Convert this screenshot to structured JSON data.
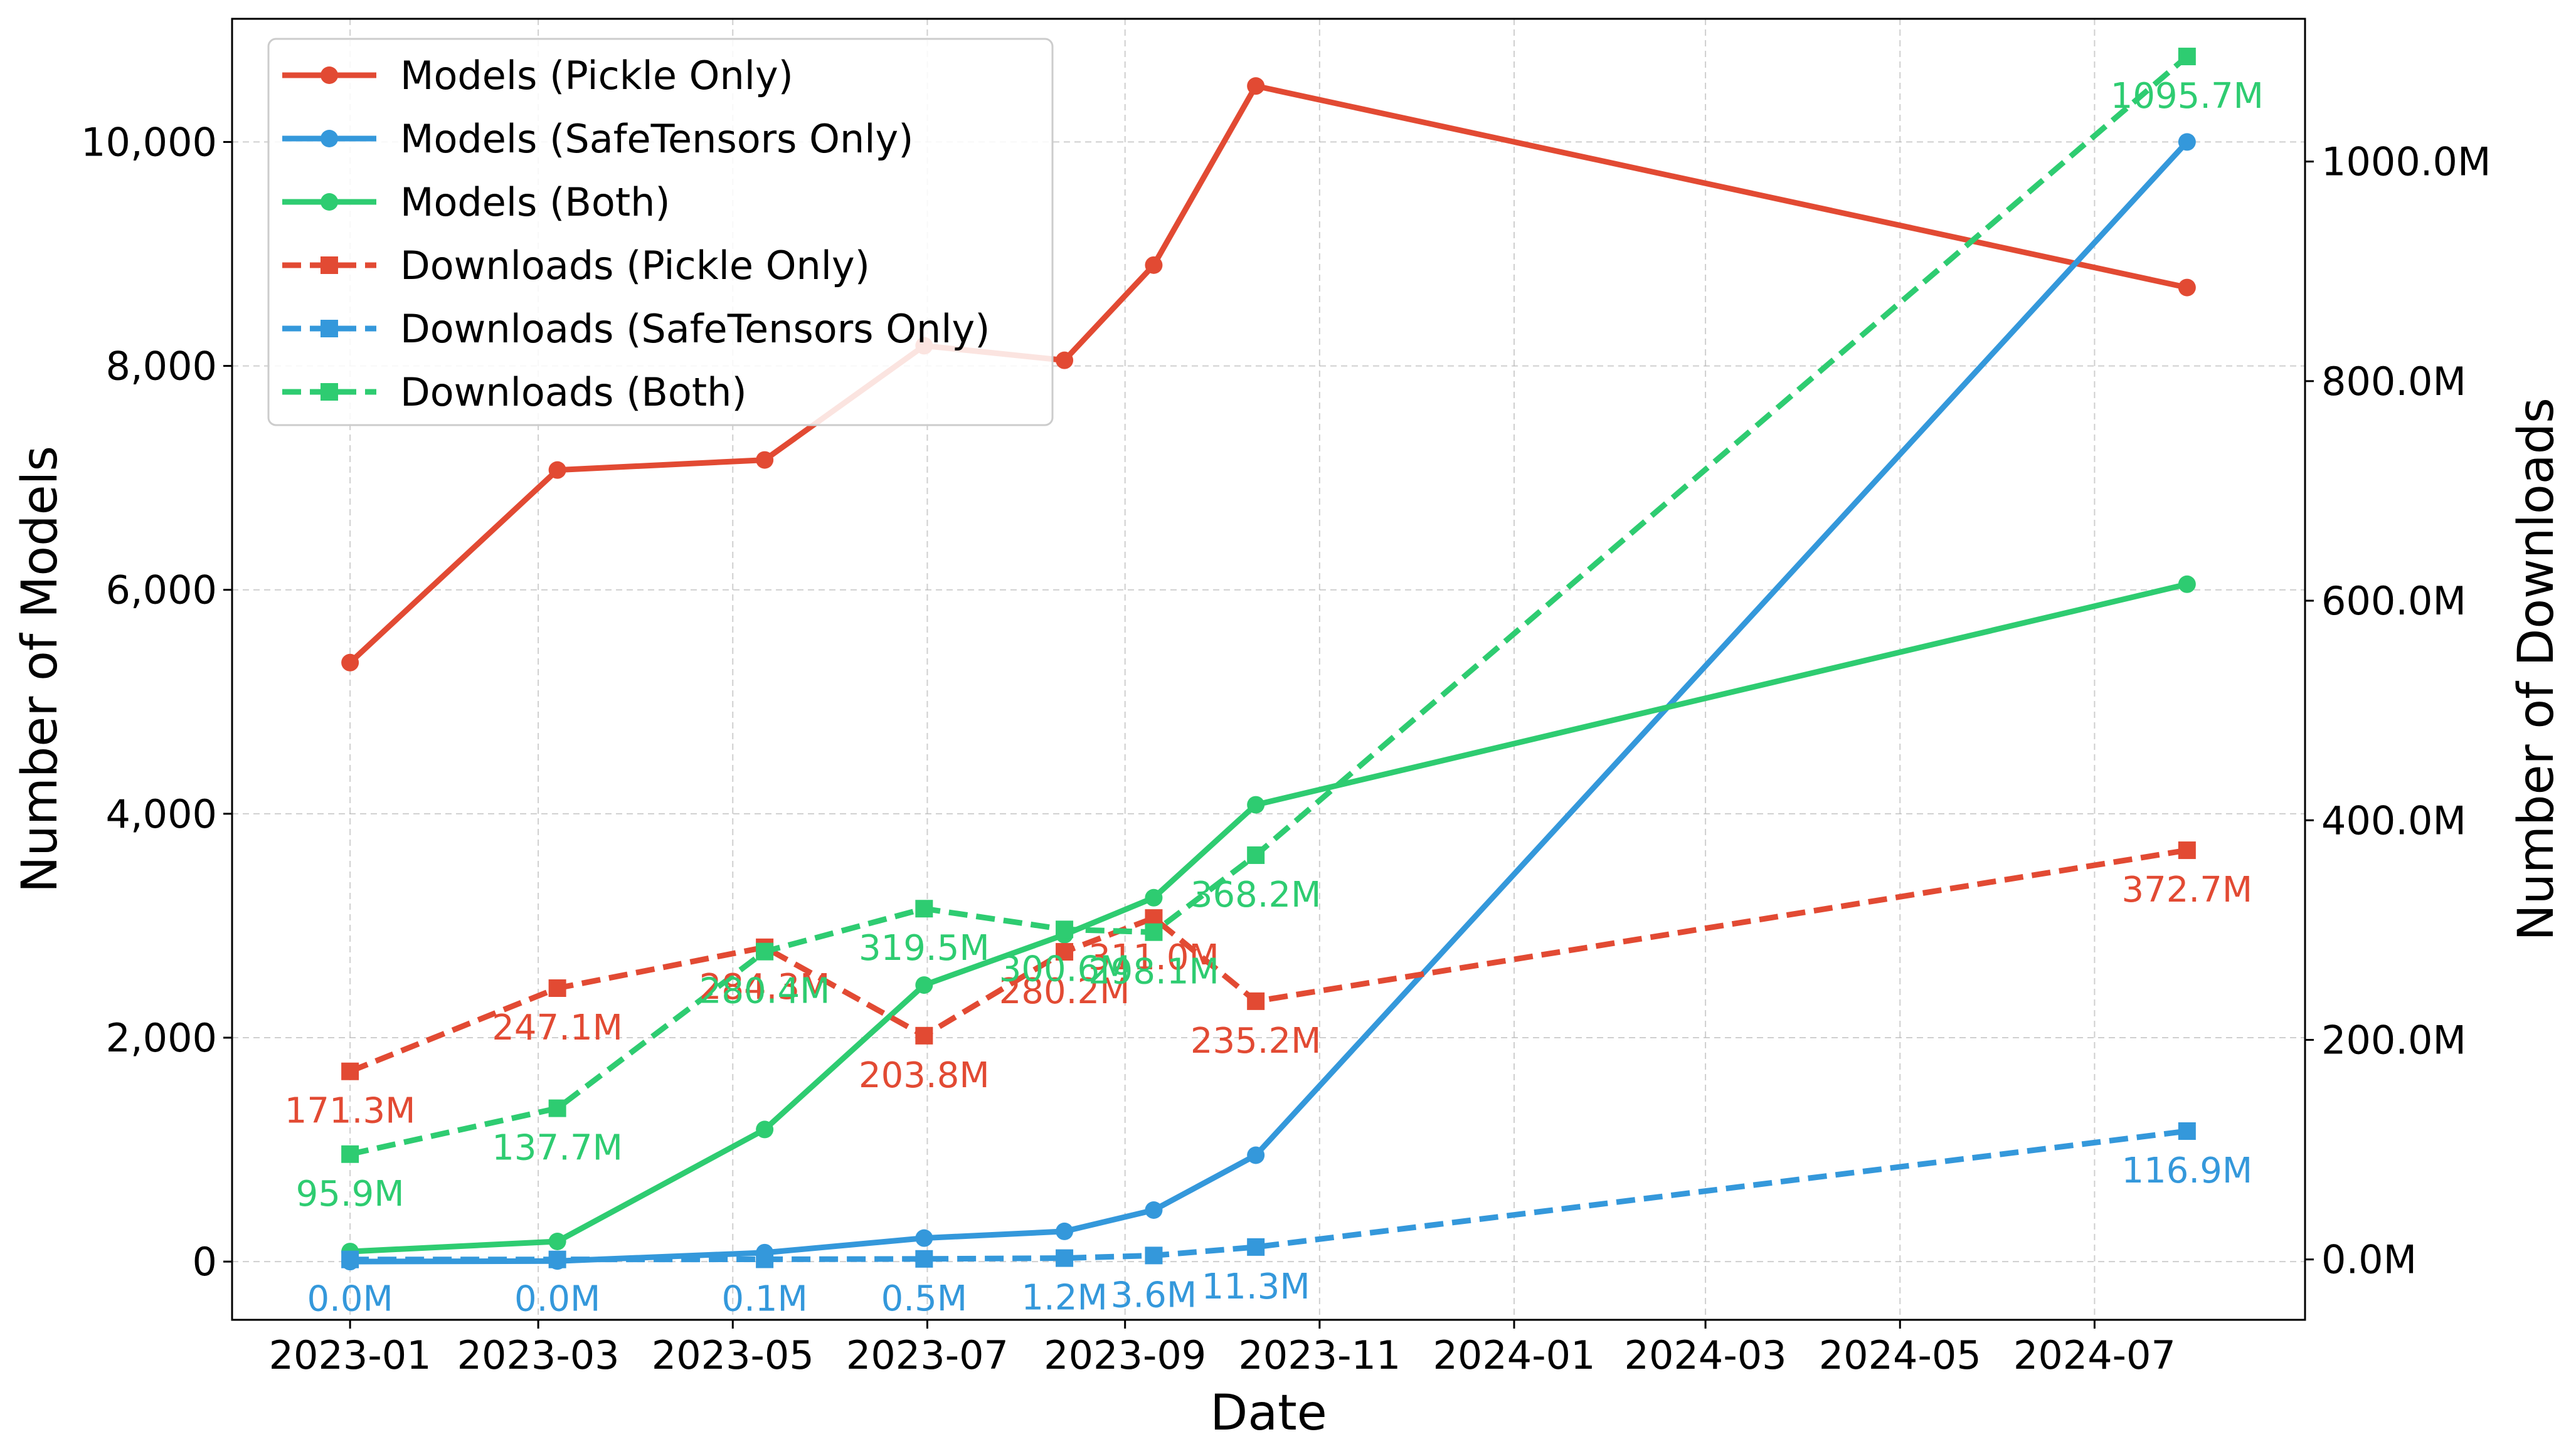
{
  "chart_data": {
    "type": "line",
    "xlabel": "Date",
    "ylabel": "Number of Models",
    "ylabel_right": "Number of Downloads",
    "x_ticks": [
      "2023-01",
      "2023-03",
      "2023-05",
      "2023-07",
      "2023-09",
      "2023-11",
      "2024-01",
      "2024-03",
      "2024-05",
      "2024-07"
    ],
    "xlim": [
      "2022-11-25",
      "2024-09-05"
    ],
    "ylim_left": [
      -520,
      11100
    ],
    "yticks_left": [
      0,
      2000,
      4000,
      6000,
      8000,
      10000
    ],
    "yticks_left_labels": [
      "0",
      "2,000",
      "4,000",
      "6,000",
      "8,000",
      "10,000"
    ],
    "ylim_right": [
      -55,
      1130
    ],
    "yticks_right": [
      0,
      200,
      400,
      600,
      800,
      1000
    ],
    "yticks_right_labels": [
      "0.0M",
      "200.0M",
      "400.0M",
      "600.0M",
      "800.0M",
      "1000.0M"
    ],
    "grid": true,
    "legend_position": "top-left",
    "dates": [
      "2023-01-01",
      "2023-03-07",
      "2023-05-11",
      "2023-06-30",
      "2023-08-13",
      "2023-09-10",
      "2023-10-12",
      "2024-07-30"
    ],
    "series": [
      {
        "name": "Models (Pickle Only)",
        "axis": "left",
        "style": "solid",
        "marker": "circle",
        "color": "#e24a33",
        "values": [
          5350,
          7070,
          7160,
          8180,
          8050,
          8900,
          10500,
          8700
        ]
      },
      {
        "name": "Models (SafeTensors Only)",
        "axis": "left",
        "style": "solid",
        "marker": "circle",
        "color": "#3498db",
        "values": [
          0,
          5,
          80,
          210,
          270,
          460,
          950,
          10000
        ]
      },
      {
        "name": "Models (Both)",
        "axis": "left",
        "style": "solid",
        "marker": "circle",
        "color": "#2ecc71",
        "values": [
          90,
          180,
          1180,
          2470,
          2920,
          3250,
          4080,
          6050
        ]
      },
      {
        "name": "Downloads (Pickle Only)",
        "axis": "right",
        "style": "dashed",
        "marker": "square",
        "color": "#e24a33",
        "values": [
          171.3,
          247.1,
          284.3,
          203.8,
          280.2,
          311.0,
          235.2,
          372.7
        ],
        "labels": [
          "171.3M",
          "247.1M",
          "284.3M",
          "203.8M",
          "280.2M",
          "311.0M",
          "235.2M",
          "372.7M"
        ]
      },
      {
        "name": "Downloads (SafeTensors Only)",
        "axis": "right",
        "style": "dashed",
        "marker": "square",
        "color": "#3498db",
        "values": [
          0.0,
          0.0,
          0.1,
          0.5,
          1.2,
          3.6,
          11.3,
          116.9
        ],
        "labels": [
          "0.0M",
          "0.0M",
          "0.1M",
          "0.5M",
          "1.2M",
          "3.6M",
          "11.3M",
          "116.9M"
        ]
      },
      {
        "name": "Downloads (Both)",
        "axis": "right",
        "style": "dashed",
        "marker": "square",
        "color": "#2ecc71",
        "values": [
          95.9,
          137.7,
          280.4,
          319.5,
          300.6,
          298.1,
          368.2,
          1095.7
        ],
        "labels": [
          "95.9M",
          "137.7M",
          "280.4M",
          "319.5M",
          "300.6M",
          "298.1M",
          "368.2M",
          "1095.7M"
        ]
      }
    ]
  }
}
